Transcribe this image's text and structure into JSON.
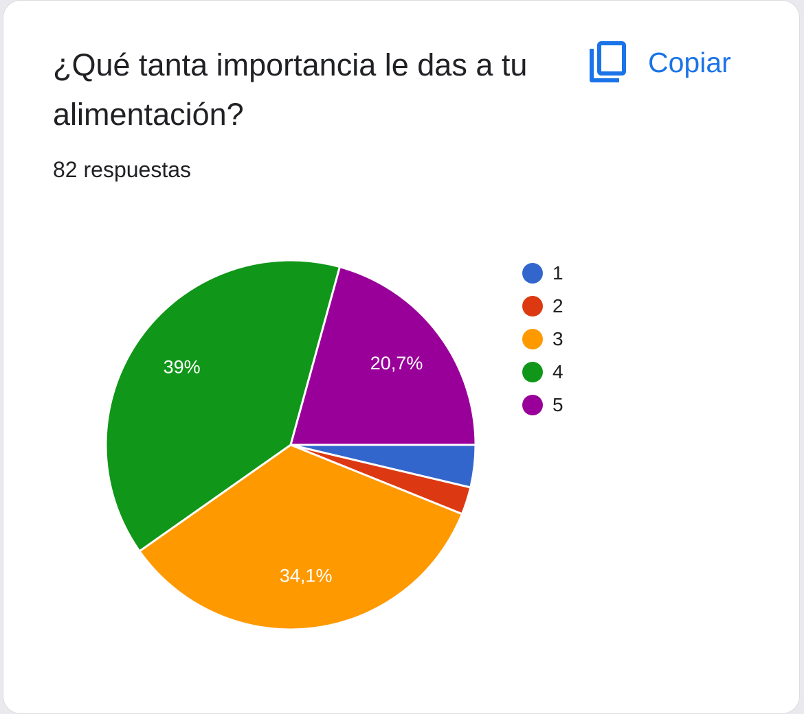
{
  "card": {
    "title": "¿Qué tanta importancia le das a tu alimentación?",
    "responses": "82 respuestas",
    "copy_label": "Copiar",
    "copy_icon": "copy-icon",
    "accent_color": "#1a73e8"
  },
  "chart_data": {
    "type": "pie",
    "categories": [
      "1",
      "2",
      "3",
      "4",
      "5"
    ],
    "values": [
      3.7,
      2.4,
      34.1,
      39.0,
      20.7
    ],
    "value_labels": [
      "",
      "",
      "34,1%",
      "39%",
      "20,7%"
    ],
    "colors": [
      "#3366cc",
      "#dc3912",
      "#ff9900",
      "#109618",
      "#990099"
    ],
    "legend_position": "right"
  }
}
